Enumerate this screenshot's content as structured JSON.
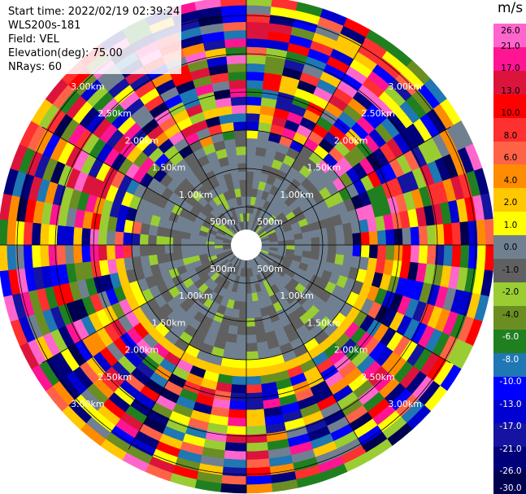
{
  "info": {
    "start_time": "Start time: 2022/02/19 02:39:24",
    "site": "WLS200s-181",
    "field": "Field: VEL",
    "elevation": "Elevation(deg): 75.00",
    "nrays": "NRays: 60"
  },
  "colorbar": {
    "unit": "m/s",
    "colors": [
      "#000050",
      "#00007a",
      "#1414a0",
      "#0000d0",
      "#0000ff",
      "#1f77b4",
      "#208020",
      "#6b8e23",
      "#9acd32",
      "#606060",
      "#708090",
      "#ffff00",
      "#ffc800",
      "#ff8c00",
      "#ff6347",
      "#ff3030",
      "#ff0000",
      "#dc143c",
      "#ff1493",
      "#ff66cc"
    ],
    "labels": [
      "-30.0",
      "-26.0",
      "-21.0",
      "-17.0",
      "-13.0",
      "-10.0",
      "-8.0",
      "-6.0",
      "-4.0",
      "-2.0",
      "-1.0",
      "0.0",
      "1.0",
      "2.0",
      "4.0",
      "6.0",
      "8.0",
      "10.0",
      "13.0",
      "17.0",
      "21.0",
      "26.0"
    ]
  },
  "ring_labels": [
    "500m",
    "1.00km",
    "1.50km",
    "2.00km",
    "2.50km",
    "3.00km"
  ],
  "ray_count": 60
}
